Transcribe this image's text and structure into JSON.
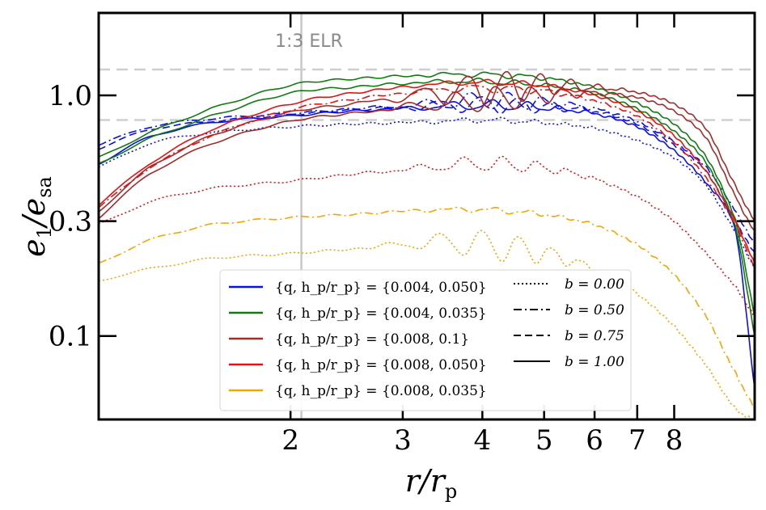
{
  "chart_data": {
    "type": "line",
    "xscale": "log",
    "yscale": "log",
    "xlim": [
      1.0,
      10.7
    ],
    "ylim": [
      0.045,
      2.2
    ],
    "xlabel": "r/r_p",
    "ylabel": "e_1/e_sa",
    "x_ticks": [
      2,
      3,
      4,
      5,
      6,
      7,
      8
    ],
    "y_ticks": [
      {
        "value": 1.0,
        "label": "1.0"
      },
      {
        "value": 0.3,
        "label": "0.3"
      },
      {
        "value": 0.1,
        "label": "0.1"
      }
    ],
    "reference_lines": [
      {
        "orientation": "vertical",
        "value": 2.08,
        "label": "1:3 ELR",
        "color": "#c8c8c8"
      },
      {
        "orientation": "horizontal",
        "value": 1.28,
        "color": "#cfcfcf",
        "style": "dashed"
      },
      {
        "orientation": "horizontal",
        "value": 0.79,
        "color": "#cfcfcf",
        "style": "dashed"
      }
    ],
    "color_legend": [
      {
        "label": "{q, h_p/r_p} = {0.004, 0.050}",
        "color": "#0a10e6"
      },
      {
        "label": "{q, h_p/r_p} = {0.004, 0.035}",
        "color": "#117a11"
      },
      {
        "label": "{q, h_p/r_p} = {0.008, 0.1}",
        "color": "#a52a2a"
      },
      {
        "label": "{q, h_p/r_p} = {0.008, 0.050}",
        "color": "#e01414"
      },
      {
        "label": "{q, h_p/r_p} = {0.008, 0.035}",
        "color": "#f5a500"
      }
    ],
    "style_legend": [
      {
        "label": "b = 0.00",
        "style": "dotted"
      },
      {
        "label": "b = 0.50",
        "style": "dashdot"
      },
      {
        "label": "b = 0.75",
        "style": "dashed"
      },
      {
        "label": "b = 1.00",
        "style": "solid"
      }
    ],
    "x": [
      1.0,
      1.2,
      1.5,
      2.0,
      2.5,
      3.0,
      3.5,
      4.0,
      5.0,
      6.0,
      7.0,
      8.0,
      9.0,
      10.0,
      10.7
    ],
    "series": [
      {
        "name": "{0.004, 0.050} b=1.00",
        "color": "#0a10e6",
        "style": "solid",
        "wiggle": 0.02,
        "values": [
          0.52,
          0.67,
          0.77,
          0.82,
          0.86,
          0.88,
          0.9,
          0.91,
          0.89,
          0.84,
          0.74,
          0.59,
          0.43,
          0.27,
          0.06
        ]
      },
      {
        "name": "{0.004, 0.050} b=0.75",
        "color": "#0a10e6",
        "style": "dashed",
        "wiggle": 0.035,
        "values": [
          0.6,
          0.72,
          0.78,
          0.83,
          0.87,
          0.89,
          0.91,
          0.92,
          0.9,
          0.86,
          0.76,
          0.62,
          0.48,
          0.3,
          0.22
        ]
      },
      {
        "name": "{0.004, 0.050} b=0.50",
        "color": "#0a10e6",
        "style": "dashdot",
        "wiggle": 0.035,
        "values": [
          0.62,
          0.74,
          0.8,
          0.84,
          0.88,
          0.9,
          0.93,
          0.95,
          0.93,
          0.88,
          0.78,
          0.64,
          0.5,
          0.33,
          0.24
        ]
      },
      {
        "name": "{0.004, 0.050} b=0.00",
        "color": "#0a10e6",
        "style": "dotted",
        "wiggle": 0.01,
        "values": [
          0.5,
          0.63,
          0.7,
          0.74,
          0.76,
          0.77,
          0.78,
          0.79,
          0.77,
          0.73,
          0.65,
          0.55,
          0.42,
          0.27,
          0.19
        ]
      },
      {
        "name": "{0.004, 0.035} b=1.00",
        "color": "#117a11",
        "style": "solid",
        "wiggle": 0.01,
        "values": [
          0.55,
          0.7,
          0.88,
          1.1,
          1.17,
          1.2,
          1.22,
          1.22,
          1.18,
          1.08,
          0.93,
          0.76,
          0.55,
          0.3,
          0.12
        ]
      },
      {
        "name": "{0.004, 0.035} b=0.50",
        "color": "#117a11",
        "style": "solid",
        "wiggle": 0.01,
        "values": [
          0.52,
          0.66,
          0.82,
          1.02,
          1.08,
          1.12,
          1.14,
          1.14,
          1.1,
          1.02,
          0.88,
          0.71,
          0.52,
          0.28,
          0.1
        ]
      },
      {
        "name": "{0.008, 0.1} b=1.00",
        "color": "#a52a2a",
        "style": "solid",
        "wiggle": 0.07,
        "values": [
          0.33,
          0.5,
          0.68,
          0.85,
          0.92,
          0.98,
          1.03,
          1.06,
          1.1,
          1.08,
          1.03,
          0.92,
          0.72,
          0.42,
          0.3
        ]
      },
      {
        "name": "{0.008, 0.1} b=0.75",
        "color": "#a52a2a",
        "style": "solid",
        "wiggle": 0.05,
        "values": [
          0.31,
          0.47,
          0.63,
          0.78,
          0.84,
          0.89,
          0.93,
          0.96,
          1.0,
          1.02,
          0.98,
          0.86,
          0.66,
          0.38,
          0.27
        ]
      },
      {
        "name": "{0.008, 0.050} b=1.00",
        "color": "#e01414",
        "style": "solid",
        "wiggle": 0.01,
        "values": [
          0.35,
          0.52,
          0.72,
          0.92,
          1.02,
          1.08,
          1.12,
          1.13,
          1.1,
          1.0,
          0.86,
          0.68,
          0.48,
          0.3,
          0.2
        ]
      },
      {
        "name": "{0.008, 0.050} b=0.50",
        "color": "#e01414",
        "style": "dashdot",
        "wiggle": 0.015,
        "values": [
          0.34,
          0.5,
          0.68,
          0.87,
          0.96,
          1.02,
          1.06,
          1.07,
          1.04,
          0.95,
          0.82,
          0.64,
          0.45,
          0.29,
          0.19
        ]
      },
      {
        "name": "{0.008, 0.050} b=0.00",
        "color": "#e01414",
        "style": "dotted",
        "wiggle": 0.03,
        "values": [
          0.29,
          0.36,
          0.41,
          0.44,
          0.47,
          0.49,
          0.51,
          0.52,
          0.5,
          0.45,
          0.38,
          0.3,
          0.22,
          0.16,
          0.12
        ]
      },
      {
        "name": "{0.008, 0.035} b=0.50",
        "color": "#f5a500",
        "style": "dashdot",
        "wiggle": 0.01,
        "values": [
          0.2,
          0.25,
          0.29,
          0.31,
          0.32,
          0.33,
          0.335,
          0.335,
          0.32,
          0.29,
          0.24,
          0.18,
          0.12,
          0.07,
          0.05
        ]
      },
      {
        "name": "{0.008, 0.035} b=0.00",
        "color": "#f5a500",
        "style": "dotted",
        "wiggle": 0.06,
        "values": [
          0.17,
          0.19,
          0.21,
          0.22,
          0.23,
          0.24,
          0.245,
          0.24,
          0.22,
          0.19,
          0.15,
          0.11,
          0.075,
          0.05,
          0.045
        ]
      }
    ]
  }
}
